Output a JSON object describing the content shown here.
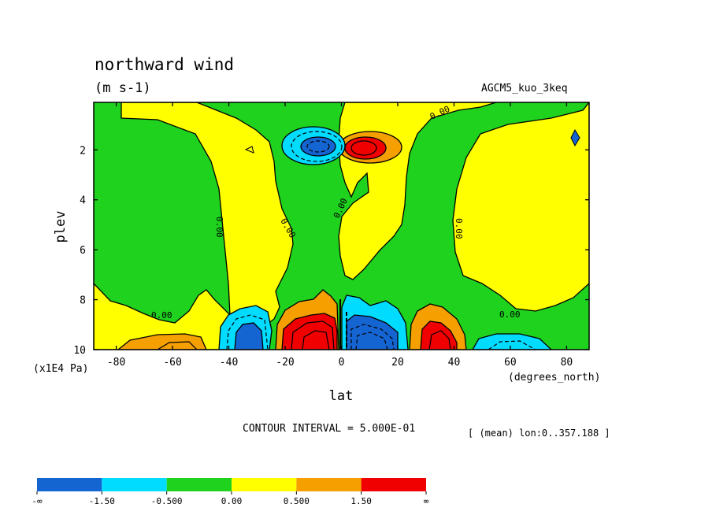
{
  "chart_data": {
    "type": "contour",
    "title": "northward wind",
    "units": "(m s-1)",
    "model_label": "AGCM5_kuo_3keq",
    "xlabel": "lat",
    "xunits": "(degrees_north)",
    "ylabel": "plev",
    "yunits": "(x1E4 Pa)",
    "xlim": [
      -88,
      88
    ],
    "ylim": [
      0.1,
      10
    ],
    "y_inverted": true,
    "xticks": [
      -80,
      -60,
      -40,
      -20,
      0,
      20,
      40,
      60,
      80
    ],
    "xtick_labels": [
      "-80",
      "-60",
      "-40",
      "-20",
      "0",
      "20",
      "40",
      "60",
      "80"
    ],
    "yticks": [
      2,
      4,
      6,
      8,
      10
    ],
    "ytick_labels": [
      "2",
      "4",
      "6",
      "8",
      "10"
    ],
    "contour_interval": "CONTOUR INTERVAL = 5.000E-01",
    "mean_note": "[ (mean) lon:0..357.188 ]",
    "contour_labels": [
      "0.00",
      "0.00",
      "0.00",
      "0.00",
      "0.00",
      "0.00",
      "0.00",
      "0.00"
    ],
    "colorbar": {
      "bins": [
        "#1464d2",
        "#00dcff",
        "#1ed21e",
        "#ffff00",
        "#f5a000",
        "#f00000"
      ],
      "labels": [
        "-∞",
        "-1.50",
        "-0.500",
        "0.00",
        "0.500",
        "1.50",
        "∞"
      ]
    }
  }
}
